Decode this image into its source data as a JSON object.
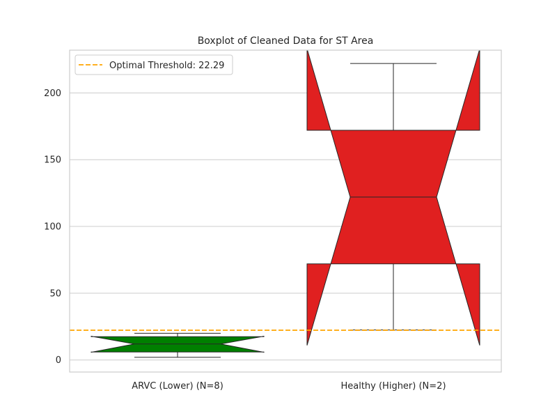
{
  "chart_data": {
    "type": "boxplot",
    "title": "Boxplot of Cleaned Data for ST Area",
    "xlabel": "",
    "ylabel": "",
    "ylim": [
      -9,
      232
    ],
    "yticks": [
      0,
      50,
      100,
      150,
      200
    ],
    "grid": true,
    "legend_position": "top-left",
    "categories": [
      "ARVC (Lower) (N=8)",
      "Healthy (Higher) (N=2)"
    ],
    "boxes": [
      {
        "category": "ARVC (Lower) (N=8)",
        "whisker_low": 2,
        "q1": 6,
        "median": 12,
        "q3": 17.5,
        "whisker_high": 20,
        "notch_low": 5.8,
        "notch_high": 17.8,
        "color": "#007f00"
      },
      {
        "category": "Healthy (Higher) (N=2)",
        "whisker_low": 22.5,
        "q1": 72,
        "median": 122,
        "q3": 172,
        "whisker_high": 222,
        "notch_low": 11,
        "notch_high": 233,
        "color": "#e02020"
      }
    ],
    "threshold": {
      "label": "Optimal Threshold: 22.29",
      "value": 22.29,
      "color": "#ffa500"
    }
  }
}
